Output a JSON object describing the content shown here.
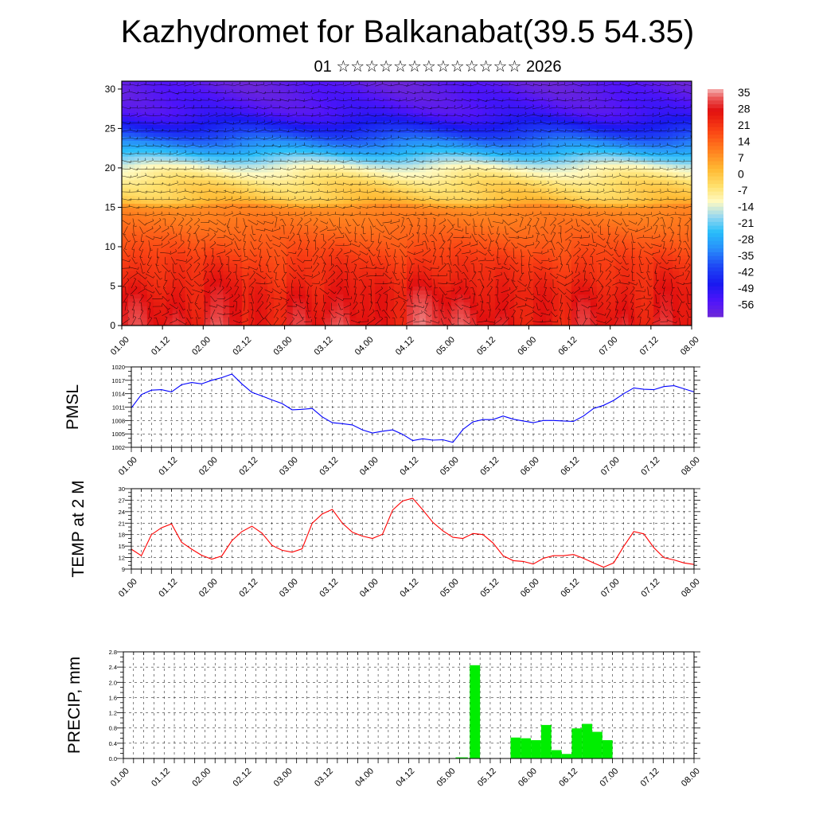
{
  "title": "Kazhydromet for Balkanabat(39.5 54.35)",
  "subtitle": "01 ☆☆☆☆☆☆☆☆☆☆☆☆☆ 2026",
  "chart_data": [
    {
      "type": "heatmap",
      "ylabel": "",
      "x_ticks": [
        "01.00",
        "01.12",
        "02.00",
        "02.12",
        "03.00",
        "03.12",
        "04.00",
        "04.12",
        "05.00",
        "05.12",
        "06.00",
        "06.12",
        "07.00",
        "07.12",
        "08.00"
      ],
      "y_ticks": [
        "0",
        "5",
        "10",
        "15",
        "20",
        "25",
        "30"
      ],
      "ylim": [
        0,
        31
      ],
      "colorbar_labels": [
        "35",
        "28",
        "21",
        "14",
        "7",
        "0",
        "-7",
        "-14",
        "-21",
        "-28",
        "-35",
        "-42",
        "-49",
        "-56"
      ],
      "colorbar_range": [
        -63,
        42
      ],
      "profile": [
        [
          0,
          31
        ],
        [
          4,
          29
        ],
        [
          8,
          24
        ],
        [
          12,
          17
        ],
        [
          15,
          12
        ],
        [
          16,
          2
        ],
        [
          18,
          -2
        ],
        [
          20,
          -10
        ],
        [
          22,
          -25
        ],
        [
          25,
          -45
        ],
        [
          27,
          -55
        ],
        [
          31,
          -60
        ]
      ],
      "day_warmth": [
        3,
        1,
        5,
        -2,
        2,
        4,
        0,
        6,
        4,
        1,
        -1,
        2,
        0,
        3,
        -1
      ],
      "wind_barbs": "dense black wind vectors overlay"
    },
    {
      "type": "line",
      "ylabel": "PMSL",
      "color": "#0000ff",
      "x_ticks": [
        "01.00",
        "01.12",
        "02.00",
        "02.12",
        "03.00",
        "03.12",
        "04.00",
        "04.12",
        "05.00",
        "05.12",
        "06.00",
        "06.12",
        "07.00",
        "07.12",
        "08.00"
      ],
      "y_ticks": [
        "1002",
        "1005",
        "1008",
        "1011",
        "1014",
        "1017",
        "1020"
      ],
      "ylim": [
        1002,
        1020
      ],
      "x": [
        0,
        0.25,
        0.5,
        0.75,
        1,
        1.25,
        1.5,
        1.75,
        2,
        2.25,
        2.5,
        2.75,
        3,
        3.25,
        3.5,
        3.75,
        4,
        4.25,
        4.5,
        4.75,
        5,
        5.25,
        5.5,
        5.75,
        6,
        6.25,
        6.5,
        6.75,
        7,
        7.25,
        7.5,
        7.75,
        8,
        8.25,
        8.5,
        8.75,
        9,
        9.25,
        9.5,
        9.75,
        10,
        10.25,
        10.5,
        10.75,
        11,
        11.25,
        11.5,
        11.75,
        12,
        12.25,
        12.5,
        12.75,
        13,
        13.25,
        13.5,
        13.75,
        14
      ],
      "values": [
        1010.8,
        1013.8,
        1014.8,
        1014.9,
        1014.4,
        1016.0,
        1016.5,
        1016.2,
        1017.0,
        1017.6,
        1018.4,
        1016.2,
        1014.3,
        1013.5,
        1012.6,
        1011.8,
        1010.4,
        1010.5,
        1010.7,
        1008.8,
        1007.5,
        1007.3,
        1007.0,
        1005.9,
        1005.2,
        1005.6,
        1005.9,
        1004.9,
        1003.5,
        1003.9,
        1003.6,
        1003.7,
        1003.1,
        1006.0,
        1007.7,
        1008.2,
        1008.2,
        1009.0,
        1008.3,
        1007.9,
        1007.5,
        1008.0,
        1008.0,
        1007.9,
        1007.8,
        1009.0,
        1010.7,
        1011.4,
        1012.5,
        1014.0,
        1015.3,
        1015.0,
        1014.9,
        1015.6,
        1015.8,
        1015.1,
        1014.4
      ]
    },
    {
      "type": "line",
      "ylabel": "TEMP at 2 M",
      "color": "#ff0000",
      "x_ticks": [
        "01.00",
        "01.12",
        "02.00",
        "02.12",
        "03.00",
        "03.12",
        "04.00",
        "04.12",
        "05.00",
        "05.12",
        "06.00",
        "06.12",
        "07.00",
        "07.12",
        "08.00"
      ],
      "y_ticks": [
        "9",
        "12",
        "15",
        "18",
        "21",
        "24",
        "27",
        "30"
      ],
      "ylim": [
        9,
        30
      ],
      "x": [
        0,
        0.25,
        0.5,
        0.75,
        1,
        1.25,
        1.5,
        1.75,
        2,
        2.25,
        2.5,
        2.75,
        3,
        3.25,
        3.5,
        3.75,
        4,
        4.25,
        4.5,
        4.75,
        5,
        5.25,
        5.5,
        5.75,
        6,
        6.25,
        6.5,
        6.75,
        7,
        7.25,
        7.5,
        7.75,
        8,
        8.25,
        8.5,
        8.75,
        9,
        9.25,
        9.5,
        9.75,
        10,
        10.25,
        10.5,
        10.75,
        11,
        11.25,
        11.5,
        11.75,
        12,
        12.25,
        12.5,
        12.75,
        13,
        13.25,
        13.5,
        13.75,
        14
      ],
      "values": [
        14.2,
        12.5,
        18.0,
        19.8,
        20.8,
        16.0,
        14.2,
        12.6,
        11.6,
        12.4,
        16.4,
        18.8,
        20.2,
        18.4,
        15.2,
        13.9,
        13.4,
        14.3,
        21.0,
        23.4,
        24.6,
        21.0,
        18.6,
        17.6,
        17.0,
        18.1,
        24.4,
        26.8,
        27.5,
        24.5,
        21.2,
        19.0,
        17.3,
        17.0,
        18.3,
        18.0,
        15.8,
        12.5,
        11.2,
        11.0,
        10.3,
        11.8,
        12.5,
        12.5,
        12.8,
        11.8,
        10.6,
        9.5,
        10.6,
        14.9,
        18.8,
        18.2,
        14.6,
        12.0,
        11.4,
        10.6,
        10.2
      ]
    },
    {
      "type": "bar",
      "ylabel": "PRECIP, mm",
      "color": "#00ee00",
      "x_ticks": [
        "01.00",
        "01.12",
        "02.00",
        "02.12",
        "03.00",
        "03.12",
        "04.00",
        "04.12",
        "05.00",
        "05.12",
        "06.00",
        "06.12",
        "07.00",
        "07.12",
        "08.00"
      ],
      "y_ticks": [
        "0.0",
        "0.4",
        "0.8",
        "1.2",
        "1.6",
        "2.0",
        "2.4",
        "2.8"
      ],
      "ylim": [
        0,
        2.8
      ],
      "bars": [
        {
          "x": 8.15,
          "w": 0.3,
          "value": 0.03
        },
        {
          "x": 8.5,
          "w": 0.25,
          "value": 2.45
        },
        {
          "x": 9.5,
          "w": 0.25,
          "value": 0.55
        },
        {
          "x": 9.75,
          "w": 0.25,
          "value": 0.53
        },
        {
          "x": 10.0,
          "w": 0.25,
          "value": 0.48
        },
        {
          "x": 10.25,
          "w": 0.25,
          "value": 0.88
        },
        {
          "x": 10.5,
          "w": 0.25,
          "value": 0.22
        },
        {
          "x": 10.75,
          "w": 0.25,
          "value": 0.12
        },
        {
          "x": 11.0,
          "w": 0.25,
          "value": 0.79
        },
        {
          "x": 11.25,
          "w": 0.25,
          "value": 0.91
        },
        {
          "x": 11.5,
          "w": 0.25,
          "value": 0.7
        },
        {
          "x": 11.75,
          "w": 0.25,
          "value": 0.48
        }
      ]
    }
  ]
}
